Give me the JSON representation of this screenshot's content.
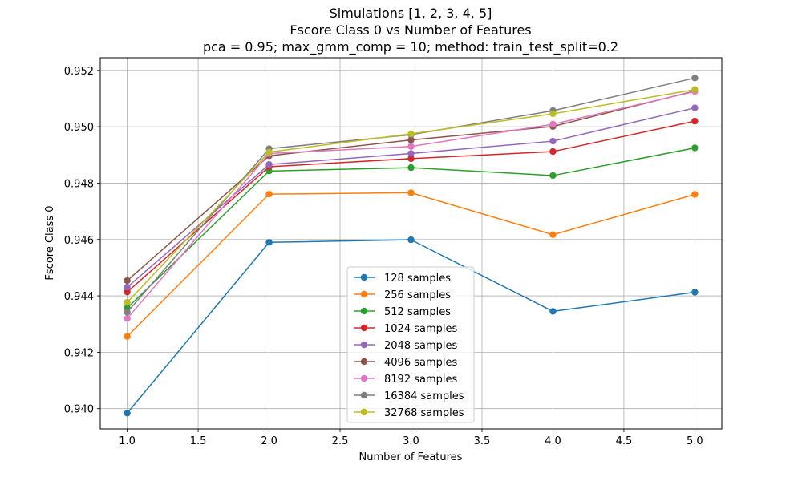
{
  "chart_data": {
    "type": "line",
    "title": "Simulations [1, 2, 3, 4, 5]",
    "subtitle_lines": [
      "Fscore Class 0 vs Number of Features",
      "pca = 0.95; max_gmm_comp = 10; method: train_test_split=0.2"
    ],
    "xlabel": "Number of Features",
    "ylabel": "Fscore Class 0",
    "xlim": [
      0.81,
      5.19
    ],
    "ylim": [
      0.93928,
      0.95245
    ],
    "xticks": [
      1.0,
      1.5,
      2.0,
      2.5,
      3.0,
      3.5,
      4.0,
      4.5,
      5.0
    ],
    "xtick_labels": [
      "1.0",
      "1.5",
      "2.0",
      "2.5",
      "3.0",
      "3.5",
      "4.0",
      "4.5",
      "5.0"
    ],
    "yticks": [
      0.94,
      0.942,
      0.944,
      0.946,
      0.948,
      0.95,
      0.952
    ],
    "ytick_labels": [
      "0.940",
      "0.942",
      "0.944",
      "0.946",
      "0.948",
      "0.950",
      "0.952"
    ],
    "grid": true,
    "legend_position": "lower-center",
    "x": [
      1,
      2,
      3,
      4,
      5
    ],
    "series": [
      {
        "name": "128 samples",
        "color": "#1f77b4",
        "values": [
          0.93984,
          0.9459,
          0.94599,
          0.94345,
          0.94413
        ]
      },
      {
        "name": "256 samples",
        "color": "#ff7f0e",
        "values": [
          0.94256,
          0.94761,
          0.94766,
          0.94617,
          0.9476
        ]
      },
      {
        "name": "512 samples",
        "color": "#2ca02c",
        "values": [
          0.94357,
          0.94843,
          0.94855,
          0.94827,
          0.94925
        ]
      },
      {
        "name": "1024 samples",
        "color": "#d62728",
        "values": [
          0.94414,
          0.94858,
          0.94887,
          0.94912,
          0.9502
        ]
      },
      {
        "name": "2048 samples",
        "color": "#9467bd",
        "values": [
          0.94431,
          0.94866,
          0.94905,
          0.94949,
          0.95067
        ]
      },
      {
        "name": "4096 samples",
        "color": "#8c564b",
        "values": [
          0.94454,
          0.94897,
          0.94953,
          0.95001,
          0.95127
        ]
      },
      {
        "name": "8192 samples",
        "color": "#e377c2",
        "values": [
          0.9432,
          0.94905,
          0.9493,
          0.95009,
          0.95125
        ]
      },
      {
        "name": "16384 samples",
        "color": "#7f7f7f",
        "values": [
          0.94342,
          0.94922,
          0.94972,
          0.95057,
          0.95173
        ]
      },
      {
        "name": "32768 samples",
        "color": "#bcbd22",
        "values": [
          0.94377,
          0.9491,
          0.94975,
          0.95046,
          0.95132
        ]
      }
    ]
  }
}
